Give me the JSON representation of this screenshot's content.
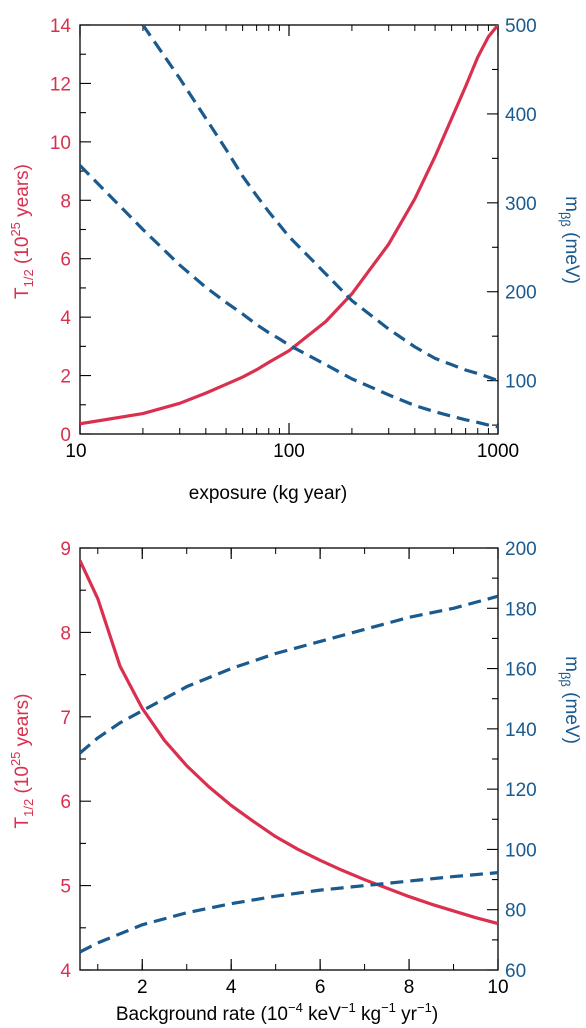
{
  "chart_data": [
    {
      "type": "line",
      "x_scale": "log",
      "xlabel": "exposure (kg year)",
      "xlim": [
        10,
        1000
      ],
      "x_ticks": [
        10,
        100,
        1000
      ],
      "x_tick_labels": [
        "10",
        "100",
        "1000"
      ],
      "ylabel_left": {
        "main": "T",
        "sub": "1/2",
        "rest1": " (10",
        "sup": "25",
        "rest2": " years)"
      },
      "ylim_left": [
        0,
        14
      ],
      "y_ticks_left": [
        0,
        2,
        4,
        6,
        8,
        10,
        12,
        14
      ],
      "ylabel_right": {
        "main": "m",
        "sub": "ββ",
        "rest": " (meV)"
      },
      "ylim_right": [
        40,
        500
      ],
      "y_ticks_right": [
        100,
        200,
        300,
        400,
        500
      ],
      "colors": {
        "left": "#d9304f",
        "right": "#1a5a8e"
      },
      "series": [
        {
          "axis": "left",
          "style": "solid",
          "x": [
            10,
            20,
            30,
            40,
            50,
            60,
            70,
            80,
            100,
            150,
            200,
            300,
            400,
            500,
            600,
            700,
            800,
            900,
            1000
          ],
          "y": [
            0.35,
            0.7,
            1.05,
            1.4,
            1.7,
            1.95,
            2.2,
            2.45,
            2.85,
            3.85,
            4.8,
            6.5,
            8.05,
            9.5,
            10.8,
            11.9,
            12.9,
            13.6,
            14.0
          ]
        },
        {
          "axis": "right",
          "style": "dashed",
          "x": [
            20,
            30,
            40,
            50,
            60,
            70,
            80,
            100,
            150,
            200,
            300,
            400,
            500,
            600,
            700,
            800,
            900,
            1000
          ],
          "y": [
            500,
            440,
            395,
            360,
            330,
            308,
            290,
            262,
            220,
            190,
            158,
            138,
            125,
            118,
            112,
            108,
            104,
            100
          ]
        },
        {
          "axis": "right",
          "style": "dashed",
          "x": [
            10,
            15,
            20,
            30,
            40,
            50,
            60,
            70,
            80,
            90,
            100,
            150,
            200,
            300,
            400,
            500,
            600,
            700,
            800,
            900,
            1000
          ],
          "y": [
            342,
            300,
            270,
            230,
            205,
            188,
            175,
            163,
            154,
            147,
            140,
            118,
            102,
            84,
            72,
            65,
            60,
            56,
            53,
            50,
            48
          ]
        }
      ]
    },
    {
      "type": "line",
      "x_scale": "linear",
      "xlabel": {
        "pre": "Background rate (10",
        "sup1": "−4",
        "mid1": " keV",
        "sup2": "−1",
        "mid2": " kg",
        "sup3": "−1",
        "mid3": " yr",
        "sup4": "−1",
        "post": ")"
      },
      "xlim": [
        0.6,
        10
      ],
      "x_ticks": [
        2,
        4,
        6,
        8,
        10
      ],
      "x_tick_labels": [
        "2",
        "4",
        "6",
        "8",
        "10"
      ],
      "ylabel_left": {
        "main": "T",
        "sub": "1/2",
        "rest1": " (10",
        "sup": "25",
        "rest2": " years)"
      },
      "ylim_left": [
        4,
        9
      ],
      "y_ticks_left": [
        4,
        5,
        6,
        7,
        8,
        9
      ],
      "ylabel_right": {
        "main": "m",
        "sub": "ββ",
        "rest": " (meV)"
      },
      "ylim_right": [
        60,
        200
      ],
      "y_ticks_right": [
        60,
        80,
        100,
        120,
        140,
        160,
        180,
        200
      ],
      "colors": {
        "left": "#d9304f",
        "right": "#1a5a8e"
      },
      "series": [
        {
          "axis": "left",
          "style": "solid",
          "x": [
            0.6,
            1.0,
            1.5,
            2.0,
            2.5,
            3.0,
            3.5,
            4.0,
            4.5,
            5.0,
            5.5,
            6.0,
            6.5,
            7.0,
            7.5,
            8.0,
            8.5,
            9.0,
            9.5,
            10.0
          ],
          "y": [
            8.85,
            8.4,
            7.6,
            7.1,
            6.72,
            6.42,
            6.17,
            5.95,
            5.76,
            5.58,
            5.43,
            5.3,
            5.18,
            5.07,
            4.97,
            4.87,
            4.78,
            4.7,
            4.62,
            4.55
          ]
        },
        {
          "axis": "right",
          "style": "dashed",
          "x": [
            0.6,
            1.0,
            1.5,
            2.0,
            2.5,
            3.0,
            3.5,
            4.0,
            5.0,
            6.0,
            7.0,
            8.0,
            9.0,
            10.0
          ],
          "y": [
            132,
            137,
            142,
            146,
            150,
            154,
            157,
            160,
            165,
            169,
            173,
            177,
            180,
            184
          ]
        },
        {
          "axis": "right",
          "style": "dashed",
          "x": [
            0.6,
            1.0,
            1.5,
            2.0,
            3.0,
            4.0,
            5.0,
            6.0,
            7.0,
            8.0,
            9.0,
            10.0
          ],
          "y": [
            66,
            69,
            72,
            75,
            79,
            82,
            84.5,
            86.5,
            88,
            89.5,
            91,
            92.3
          ]
        }
      ]
    }
  ]
}
